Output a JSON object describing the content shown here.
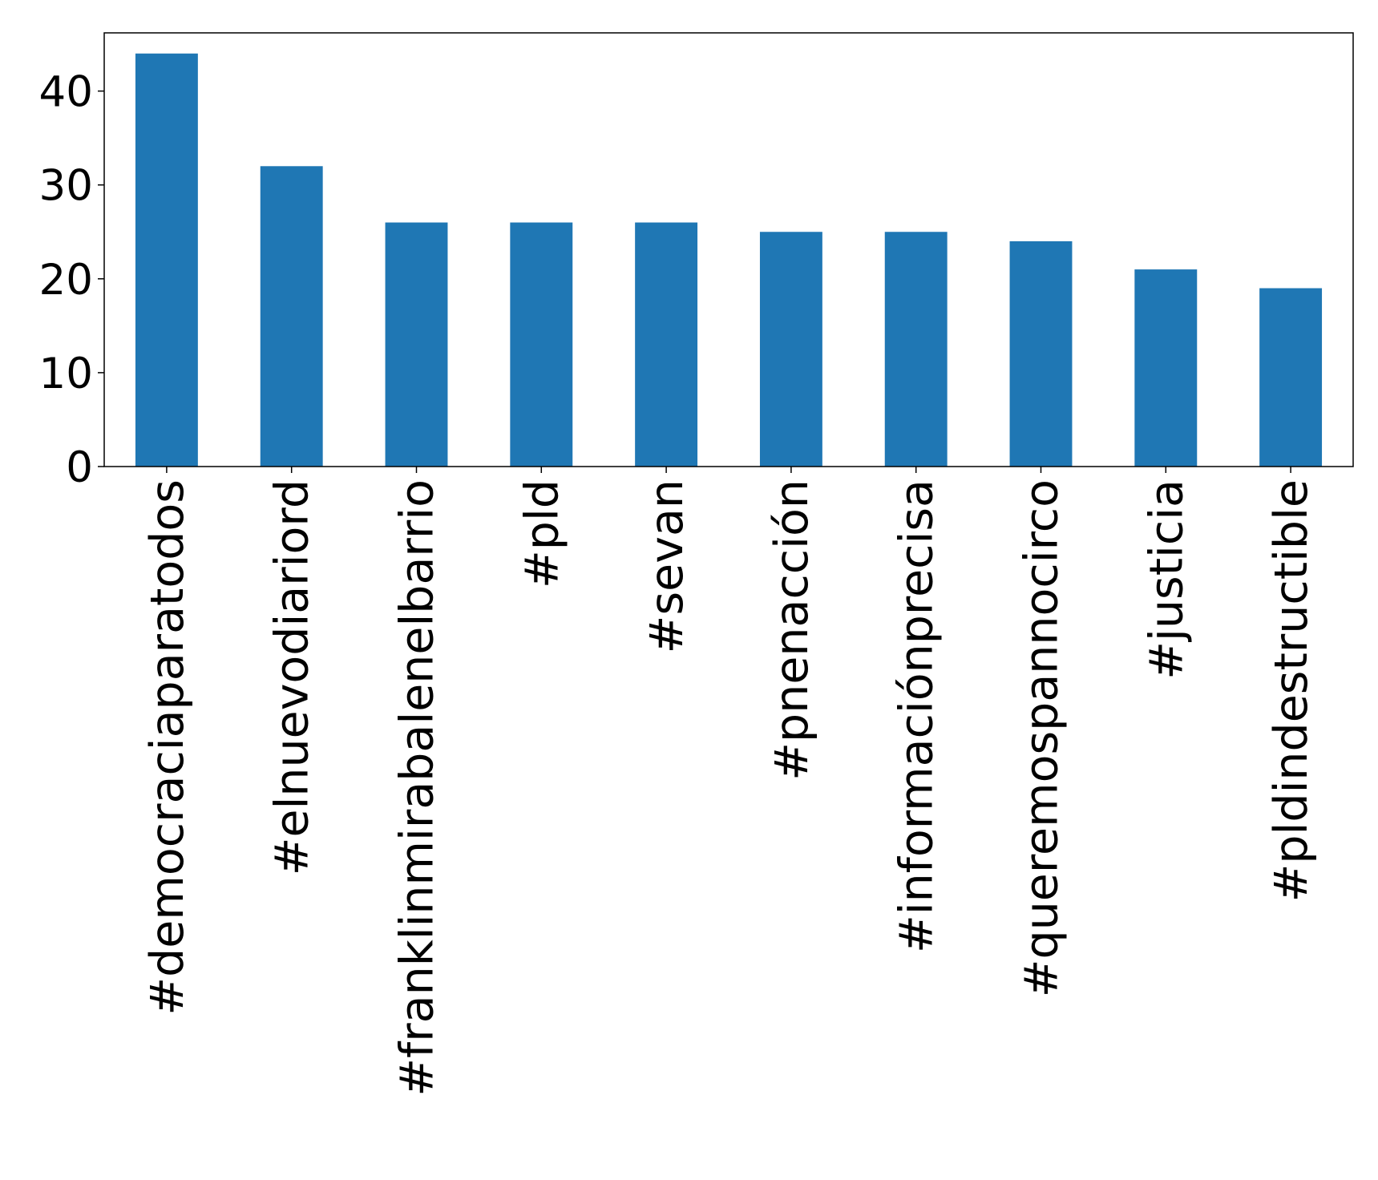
{
  "chart_data": {
    "type": "bar",
    "categories": [
      "#democraciaparatodos",
      "#elnuevodiariord",
      "#franklinmirabalenelbarrio",
      "#pld",
      "#sevan",
      "#pnenacción",
      "#informaciónprecisa",
      "#queremospannocirco",
      "#justicia",
      "#pldindestructible"
    ],
    "values": [
      44,
      32,
      26,
      26,
      26,
      25,
      25,
      24,
      21,
      19
    ],
    "color": "#1f77b4",
    "ylim": [
      0,
      46.2
    ],
    "yticks": [
      0,
      10,
      20,
      30,
      40
    ],
    "grid": false
  }
}
